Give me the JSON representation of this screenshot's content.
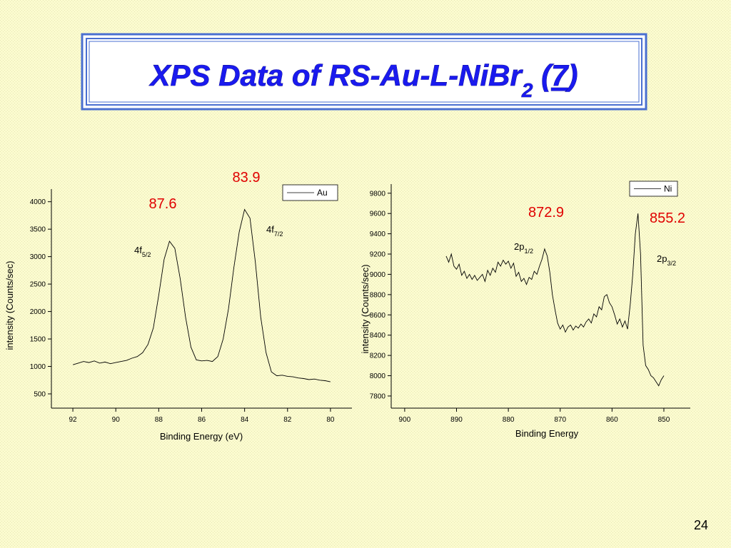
{
  "slide": {
    "title": [
      "XPS Data of RS-Au-L-NiBr",
      "2",
      " (",
      "7",
      ")"
    ],
    "page": "24"
  },
  "chart_data": [
    {
      "type": "line",
      "x_label": "Binding Energy (eV)",
      "y_label": "intensity (Counts/sec)",
      "xlim": [
        93,
        79
      ],
      "ylim": [
        240,
        4230
      ],
      "xticks": [
        92,
        90,
        88,
        86,
        84,
        82,
        80
      ],
      "yticks": [
        500,
        1000,
        1500,
        2000,
        2500,
        3000,
        3500,
        4000
      ],
      "x": [
        92,
        91.75,
        91.5,
        91.25,
        91,
        90.75,
        90.5,
        90.25,
        90,
        89.75,
        89.5,
        89.25,
        89,
        88.75,
        88.5,
        88.25,
        88,
        87.75,
        87.5,
        87.25,
        87,
        86.75,
        86.5,
        86.25,
        86,
        85.75,
        85.5,
        85.25,
        85,
        84.75,
        84.5,
        84.25,
        84,
        83.75,
        83.5,
        83.25,
        83,
        82.75,
        82.5,
        82.25,
        82,
        81.75,
        81.5,
        81.25,
        81,
        80.75,
        80.5,
        80.25,
        80
      ],
      "series": [
        {
          "name": "Au",
          "color": "#000000",
          "values": [
            1030,
            1060,
            1090,
            1070,
            1100,
            1060,
            1080,
            1050,
            1070,
            1090,
            1110,
            1150,
            1180,
            1250,
            1400,
            1700,
            2300,
            2950,
            3280,
            3150,
            2600,
            1900,
            1350,
            1120,
            1100,
            1110,
            1090,
            1180,
            1500,
            2050,
            2800,
            3450,
            3860,
            3700,
            2900,
            1900,
            1250,
            900,
            830,
            840,
            820,
            810,
            790,
            780,
            760,
            770,
            750,
            740,
            720
          ]
        }
      ],
      "annotations": [
        {
          "text": "87.6",
          "color": "#e00000"
        },
        {
          "text": "83.9",
          "color": "#e00000"
        },
        {
          "text": "4f",
          "sub": "5/2",
          "color": "#000000"
        },
        {
          "text": "4f",
          "sub": "7/2",
          "color": "#000000"
        }
      ]
    },
    {
      "type": "line",
      "x_label": "Binding Energy",
      "y_label": "intensity (Counts/sec)",
      "xlim": [
        902.6,
        844.9
      ],
      "ylim": [
        7680,
        9890
      ],
      "xticks": [
        900,
        890,
        880,
        870,
        860,
        850
      ],
      "yticks": [
        7800,
        8000,
        8200,
        8400,
        8600,
        8800,
        9000,
        9200,
        9400,
        9600,
        9800
      ],
      "x": [
        892,
        891.5,
        891,
        890.5,
        890,
        889.5,
        889,
        888.5,
        888,
        887.5,
        887,
        886.5,
        886,
        885.5,
        885,
        884.5,
        884,
        883.5,
        883,
        882.5,
        882,
        881.5,
        881,
        880.5,
        880,
        879.5,
        879,
        878.5,
        878,
        877.5,
        877,
        876.5,
        876,
        875.5,
        875,
        874.5,
        874,
        873.5,
        873,
        872.5,
        872,
        871.5,
        871,
        870.5,
        870,
        869.5,
        869,
        868.5,
        868,
        867.5,
        867,
        866.5,
        866,
        865.5,
        865,
        864.5,
        864,
        863.5,
        863,
        862.5,
        862,
        861.5,
        861,
        860.5,
        860,
        859.5,
        859,
        858.5,
        858,
        857.5,
        857,
        856.5,
        856,
        855.5,
        855,
        854.5,
        854,
        853.5,
        853,
        852.5,
        852,
        851.5,
        851,
        850.5,
        850
      ],
      "series": [
        {
          "name": "Ni",
          "color": "#000000",
          "values": [
            9180,
            9120,
            9200,
            9080,
            9050,
            9100,
            8990,
            9030,
            8960,
            9000,
            8950,
            8990,
            8940,
            8970,
            9000,
            8930,
            9040,
            8990,
            9060,
            9020,
            9120,
            9080,
            9140,
            9100,
            9130,
            9060,
            9110,
            8980,
            9020,
            8930,
            8960,
            8900,
            8970,
            8950,
            9030,
            9000,
            9080,
            9150,
            9250,
            9180,
            9020,
            8800,
            8650,
            8520,
            8460,
            8500,
            8430,
            8480,
            8500,
            8450,
            8490,
            8470,
            8510,
            8480,
            8530,
            8560,
            8520,
            8610,
            8580,
            8680,
            8650,
            8780,
            8800,
            8720,
            8680,
            8600,
            8510,
            8560,
            8480,
            8540,
            8460,
            8700,
            9000,
            9400,
            9600,
            9200,
            8300,
            8100,
            8060,
            8000,
            7980,
            7940,
            7900,
            7960,
            8000
          ]
        }
      ],
      "annotations": [
        {
          "text": "872.9",
          "color": "#e00000"
        },
        {
          "text": "855.2",
          "color": "#e00000"
        },
        {
          "text": "2p",
          "sub": "1/2",
          "color": "#000000"
        },
        {
          "text": "2p",
          "sub": "3/2",
          "color": "#000000"
        }
      ]
    }
  ]
}
